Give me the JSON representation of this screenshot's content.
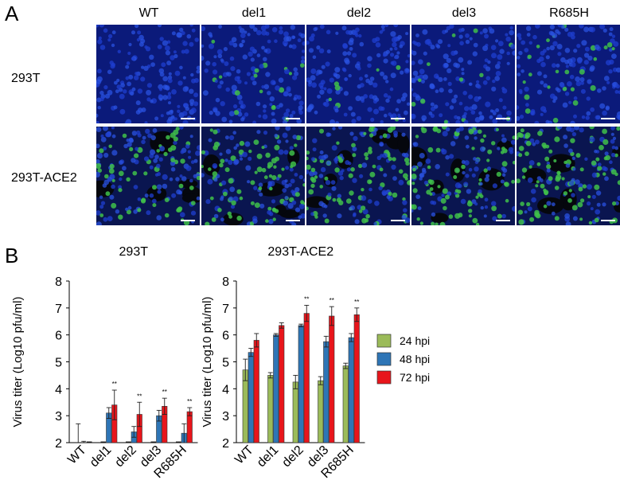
{
  "panel_a": {
    "letter": "A",
    "columns": [
      "WT",
      "del1",
      "del2",
      "del3",
      "R685H"
    ],
    "rows": [
      "293T",
      "293T-ACE2"
    ]
  },
  "panel_b": {
    "letter": "B",
    "legend": [
      "24 hpi",
      "48 hpi",
      "72 hpi"
    ],
    "colors": [
      "#9bbb59",
      "#2e75b6",
      "#e8151b"
    ]
  },
  "chart_data": [
    {
      "type": "bar",
      "title": "293T",
      "ylabel": "Virus titer (Log10 pfu/ml)",
      "ylim": [
        2,
        8
      ],
      "yticks": [
        2,
        3,
        4,
        5,
        6,
        7,
        8
      ],
      "categories": [
        "WT",
        "del1",
        "del2",
        "del3",
        "R685H"
      ],
      "series": [
        {
          "name": "24 hpi",
          "values": [
            2.0,
            2.0,
            2.0,
            2.0,
            2.0
          ],
          "errors": [
            0.7,
            0.0,
            0.0,
            0.0,
            0.0
          ]
        },
        {
          "name": "48 hpi",
          "values": [
            2.0,
            3.1,
            2.4,
            3.0,
            2.35
          ],
          "errors": [
            0.05,
            0.2,
            0.2,
            0.2,
            0.35
          ]
        },
        {
          "name": "72 hpi",
          "values": [
            2.0,
            3.4,
            3.05,
            3.35,
            3.15
          ],
          "errors": [
            0.0,
            0.55,
            0.45,
            0.3,
            0.15
          ]
        }
      ],
      "significance": [
        "",
        "**",
        "**",
        "**",
        "**"
      ]
    },
    {
      "type": "bar",
      "title": "293T-ACE2",
      "ylabel": "Virus titer (Log10 pfu/ml)",
      "ylim": [
        2,
        8
      ],
      "yticks": [
        2,
        3,
        4,
        5,
        6,
        7,
        8
      ],
      "categories": [
        "WT",
        "del1",
        "del2",
        "del3",
        "R685H"
      ],
      "series": [
        {
          "name": "24 hpi",
          "values": [
            4.7,
            4.5,
            4.25,
            4.3,
            4.85
          ],
          "errors": [
            0.4,
            0.1,
            0.25,
            0.15,
            0.1
          ]
        },
        {
          "name": "48 hpi",
          "values": [
            5.35,
            6.0,
            6.35,
            5.75,
            5.9
          ],
          "errors": [
            0.15,
            0.05,
            0.05,
            0.2,
            0.15
          ]
        },
        {
          "name": "72 hpi",
          "values": [
            5.8,
            6.35,
            6.8,
            6.7,
            6.75
          ],
          "errors": [
            0.25,
            0.1,
            0.3,
            0.35,
            0.25
          ]
        }
      ],
      "significance": [
        "",
        "",
        "**",
        "**",
        "**"
      ]
    }
  ]
}
